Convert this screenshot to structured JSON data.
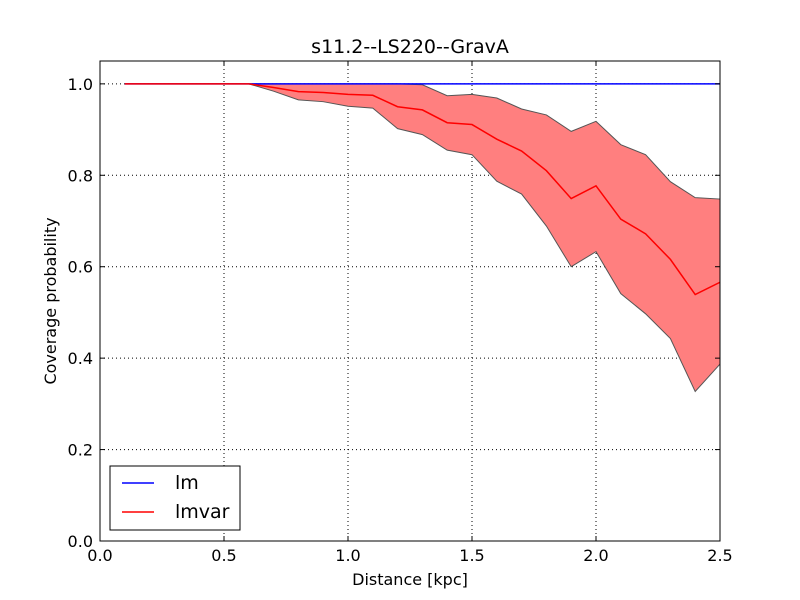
{
  "chart_data": {
    "type": "line",
    "title": "s11.2--LS220--GravA",
    "xlabel": "Distance [kpc]",
    "ylabel": "Coverage probability",
    "xlim": [
      0.0,
      2.5
    ],
    "ylim": [
      0.0,
      1.05
    ],
    "grid": true,
    "legend_position": "lower-left",
    "x_ticks": [
      0.0,
      0.5,
      1.0,
      1.5,
      2.0,
      2.5
    ],
    "x_tick_labels": [
      "0.0",
      "0.5",
      "1.0",
      "1.5",
      "2.0",
      "2.5"
    ],
    "y_ticks": [
      0.0,
      0.2,
      0.4,
      0.6,
      0.8,
      1.0
    ],
    "y_tick_labels": [
      "0.0",
      "0.2",
      "0.4",
      "0.6",
      "0.8",
      "1.0"
    ],
    "x": [
      0.1,
      0.2,
      0.3,
      0.4,
      0.5,
      0.6,
      0.7,
      0.8,
      0.9,
      1.0,
      1.1,
      1.2,
      1.3,
      1.4,
      1.5,
      1.6,
      1.7,
      1.8,
      1.9,
      2.0,
      2.1,
      2.2,
      2.3,
      2.4,
      2.5
    ],
    "series": [
      {
        "name": "lm",
        "color": "#0000ff",
        "values": [
          1,
          1,
          1,
          1,
          1,
          1,
          1,
          1,
          1,
          1,
          1,
          1,
          1,
          1,
          1,
          1,
          1,
          1,
          1,
          1,
          1,
          1,
          1,
          1,
          1
        ]
      },
      {
        "name": "lmvar",
        "color": "#ff0000",
        "band_color": "#ff7f7f",
        "values": [
          1,
          1,
          1,
          1,
          1,
          1,
          0.992,
          0.983,
          0.981,
          0.977,
          0.975,
          0.95,
          0.943,
          0.915,
          0.911,
          0.879,
          0.853,
          0.81,
          0.749,
          0.777,
          0.704,
          0.672,
          0.616,
          0.539,
          0.566
        ],
        "lower": [
          1,
          1,
          1,
          1,
          1,
          1,
          0.984,
          0.965,
          0.961,
          0.951,
          0.947,
          0.902,
          0.889,
          0.855,
          0.845,
          0.787,
          0.759,
          0.689,
          0.6,
          0.633,
          0.541,
          0.497,
          0.443,
          0.327,
          0.387
        ],
        "upper": [
          1,
          1,
          1,
          1,
          1,
          1,
          1,
          1,
          1,
          1,
          1,
          1,
          0.998,
          0.974,
          0.977,
          0.969,
          0.945,
          0.932,
          0.896,
          0.918,
          0.867,
          0.845,
          0.786,
          0.751,
          0.748
        ]
      }
    ]
  }
}
